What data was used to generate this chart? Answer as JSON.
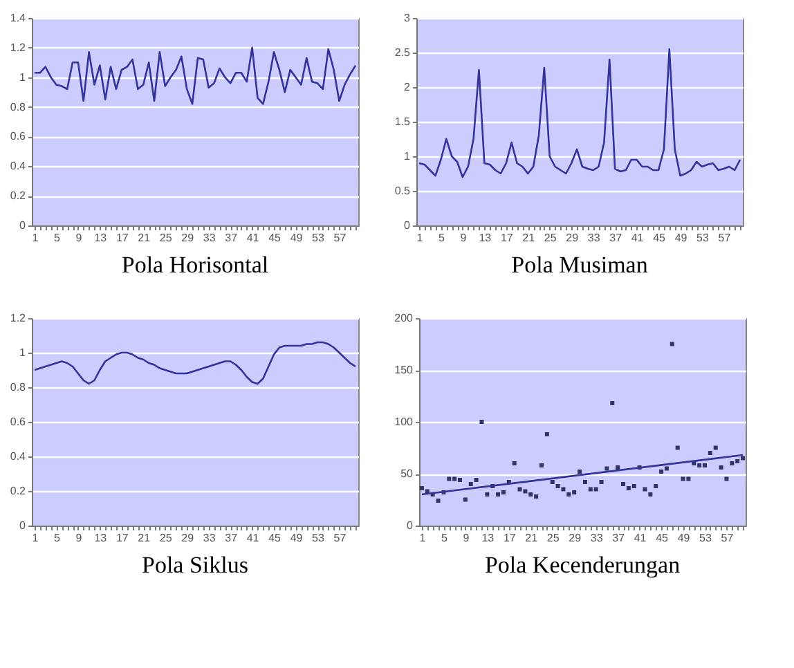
{
  "chart_data": [
    {
      "type": "line",
      "title": "Pola Horisontal",
      "categories": [
        "1",
        null,
        null,
        null,
        "5",
        null,
        null,
        null,
        "9",
        null,
        null,
        null,
        "13",
        null,
        null,
        null,
        "17",
        null,
        null,
        null,
        "21",
        null,
        null,
        null,
        "25",
        null,
        null,
        null,
        "29",
        null,
        null,
        null,
        "33",
        null,
        null,
        null,
        "37",
        null,
        null,
        null,
        "41",
        null,
        null,
        null,
        "45",
        null,
        null,
        null,
        "49",
        null,
        null,
        null,
        "53",
        null,
        null,
        null,
        "57",
        null,
        null,
        null
      ],
      "series": [
        {
          "color": "#333399",
          "values": [
            1.03,
            1.03,
            1.07,
            1.0,
            0.95,
            0.94,
            0.92,
            1.1,
            1.1,
            0.84,
            1.17,
            0.95,
            1.08,
            0.85,
            1.07,
            0.92,
            1.05,
            1.07,
            1.12,
            0.92,
            0.95,
            1.1,
            0.84,
            1.17,
            0.94,
            1.0,
            1.05,
            1.14,
            0.92,
            0.82,
            1.13,
            1.12,
            0.93,
            0.96,
            1.06,
            1.0,
            0.96,
            1.03,
            1.03,
            0.97,
            1.2,
            0.86,
            0.82,
            0.97,
            1.17,
            1.05,
            0.9,
            1.05,
            1.0,
            0.95,
            1.13,
            0.97,
            0.96,
            0.92,
            1.19,
            1.05,
            0.84,
            0.95,
            1.02,
            1.08
          ]
        }
      ],
      "ylim": [
        0,
        1.4
      ],
      "yticks": [
        0,
        0.2,
        0.4,
        0.6,
        0.8,
        1,
        1.2,
        1.4
      ],
      "grid": "y"
    },
    {
      "type": "line",
      "title": "Pola Musiman",
      "categories": [
        "1",
        null,
        null,
        null,
        "5",
        null,
        null,
        null,
        "9",
        null,
        null,
        null,
        "13",
        null,
        null,
        null,
        "17",
        null,
        null,
        null,
        "21",
        null,
        null,
        null,
        "25",
        null,
        null,
        null,
        "29",
        null,
        null,
        null,
        "33",
        null,
        null,
        null,
        "37",
        null,
        null,
        null,
        "41",
        null,
        null,
        null,
        "45",
        null,
        null,
        null,
        "49",
        null,
        null,
        null,
        "53",
        null,
        null,
        null,
        "57",
        null,
        null,
        null
      ],
      "series": [
        {
          "color": "#333399",
          "values": [
            0.9,
            0.88,
            0.8,
            0.72,
            0.95,
            1.25,
            1.0,
            0.92,
            0.7,
            0.85,
            1.25,
            2.25,
            0.9,
            0.88,
            0.8,
            0.75,
            0.9,
            1.2,
            0.9,
            0.85,
            0.75,
            0.85,
            1.3,
            2.28,
            1.0,
            0.85,
            0.8,
            0.75,
            0.9,
            1.1,
            0.85,
            0.82,
            0.8,
            0.85,
            1.2,
            2.4,
            0.82,
            0.78,
            0.8,
            0.95,
            0.95,
            0.85,
            0.85,
            0.8,
            0.8,
            1.1,
            2.55,
            1.1,
            0.72,
            0.75,
            0.8,
            0.92,
            0.85,
            0.88,
            0.9,
            0.8,
            0.82,
            0.85,
            0.8,
            0.95
          ]
        }
      ],
      "ylim": [
        0,
        3
      ],
      "yticks": [
        0,
        0.5,
        1,
        1.5,
        2,
        2.5,
        3
      ],
      "grid": "y"
    },
    {
      "type": "line",
      "title": "Pola Siklus",
      "categories": [
        "1",
        null,
        null,
        null,
        "5",
        null,
        null,
        null,
        "9",
        null,
        null,
        null,
        "13",
        null,
        null,
        null,
        "17",
        null,
        null,
        null,
        "21",
        null,
        null,
        null,
        "25",
        null,
        null,
        null,
        "29",
        null,
        null,
        null,
        "33",
        null,
        null,
        null,
        "37",
        null,
        null,
        null,
        "41",
        null,
        null,
        null,
        "45",
        null,
        null,
        null,
        "49",
        null,
        null,
        null,
        "53",
        null,
        null,
        null,
        "57",
        null,
        null,
        null
      ],
      "series": [
        {
          "color": "#333399",
          "values": [
            0.9,
            0.91,
            0.92,
            0.93,
            0.94,
            0.95,
            0.94,
            0.92,
            0.88,
            0.84,
            0.82,
            0.84,
            0.9,
            0.95,
            0.97,
            0.99,
            1.0,
            1.0,
            0.99,
            0.97,
            0.96,
            0.94,
            0.93,
            0.91,
            0.9,
            0.89,
            0.88,
            0.88,
            0.88,
            0.89,
            0.9,
            0.91,
            0.92,
            0.93,
            0.94,
            0.95,
            0.95,
            0.93,
            0.9,
            0.86,
            0.83,
            0.82,
            0.85,
            0.92,
            0.99,
            1.03,
            1.04,
            1.04,
            1.04,
            1.04,
            1.05,
            1.05,
            1.06,
            1.06,
            1.05,
            1.03,
            1.0,
            0.97,
            0.94,
            0.92
          ]
        }
      ],
      "ylim": [
        0,
        1.2
      ],
      "yticks": [
        0,
        0.2,
        0.4,
        0.6,
        0.8,
        1,
        1.2
      ],
      "grid": "y"
    },
    {
      "type": "scatter",
      "title": "Pola Kecenderungan",
      "x": [
        1,
        2,
        3,
        4,
        5,
        6,
        7,
        8,
        9,
        10,
        11,
        12,
        13,
        14,
        15,
        16,
        17,
        18,
        19,
        20,
        21,
        22,
        23,
        24,
        25,
        26,
        27,
        28,
        29,
        30,
        31,
        32,
        33,
        34,
        35,
        36,
        37,
        38,
        39,
        40,
        41,
        42,
        43,
        44,
        45,
        46,
        47,
        48,
        49,
        50,
        51,
        52,
        53,
        54,
        55,
        56,
        57,
        58,
        59,
        60
      ],
      "series": [
        {
          "type": "scatter",
          "color": "#333366",
          "marker": "square",
          "values": [
            36,
            33,
            30,
            24,
            32,
            45,
            45,
            44,
            25,
            40,
            44,
            100,
            30,
            38,
            30,
            32,
            42,
            60,
            35,
            33,
            30,
            28,
            58,
            88,
            42,
            38,
            35,
            30,
            32,
            52,
            42,
            35,
            35,
            42,
            55,
            118,
            56,
            40,
            36,
            38,
            56,
            35,
            30,
            38,
            52,
            55,
            175,
            75,
            45,
            45,
            60,
            58,
            58,
            70,
            75,
            56,
            45,
            60,
            62,
            65
          ]
        },
        {
          "type": "line",
          "color": "#333399",
          "x": [
            1,
            60
          ],
          "values": [
            30,
            68
          ]
        }
      ],
      "xlim": [
        0.5,
        60.5
      ],
      "xticks": [
        1,
        {
          "value": 2,
          "label": null
        },
        {
          "value": 3,
          "label": null
        },
        {
          "value": 4,
          "label": null
        },
        5,
        {
          "value": 6,
          "label": null
        },
        {
          "value": 7,
          "label": null
        },
        {
          "value": 8,
          "label": null
        },
        9,
        {
          "value": 10,
          "label": null
        },
        {
          "value": 11,
          "label": null
        },
        {
          "value": 12,
          "label": null
        },
        13,
        {
          "value": 14,
          "label": null
        },
        {
          "value": 15,
          "label": null
        },
        {
          "value": 16,
          "label": null
        },
        17,
        {
          "value": 18,
          "label": null
        },
        {
          "value": 19,
          "label": null
        },
        {
          "value": 20,
          "label": null
        },
        21,
        {
          "value": 22,
          "label": null
        },
        {
          "value": 23,
          "label": null
        },
        {
          "value": 24,
          "label": null
        },
        25,
        {
          "value": 26,
          "label": null
        },
        {
          "value": 27,
          "label": null
        },
        {
          "value": 28,
          "label": null
        },
        29,
        {
          "value": 30,
          "label": null
        },
        {
          "value": 31,
          "label": null
        },
        {
          "value": 32,
          "label": null
        },
        33,
        {
          "value": 34,
          "label": null
        },
        {
          "value": 35,
          "label": null
        },
        {
          "value": 36,
          "label": null
        },
        37,
        {
          "value": 38,
          "label": null
        },
        {
          "value": 39,
          "label": null
        },
        {
          "value": 40,
          "label": null
        },
        41,
        {
          "value": 42,
          "label": null
        },
        {
          "value": 43,
          "label": null
        },
        {
          "value": 44,
          "label": null
        },
        45,
        {
          "value": 46,
          "label": null
        },
        {
          "value": 47,
          "label": null
        },
        {
          "value": 48,
          "label": null
        },
        49,
        {
          "value": 50,
          "label": null
        },
        {
          "value": 51,
          "label": null
        },
        {
          "value": 52,
          "label": null
        },
        53,
        {
          "value": 54,
          "label": null
        },
        {
          "value": 55,
          "label": null
        },
        {
          "value": 56,
          "label": null
        },
        57,
        {
          "value": 58,
          "label": null
        },
        {
          "value": 59,
          "label": null
        },
        {
          "value": 60,
          "label": null
        }
      ],
      "ylim": [
        0,
        200
      ],
      "yticks": [
        0,
        50,
        100,
        150,
        200
      ],
      "grid": "y"
    }
  ]
}
